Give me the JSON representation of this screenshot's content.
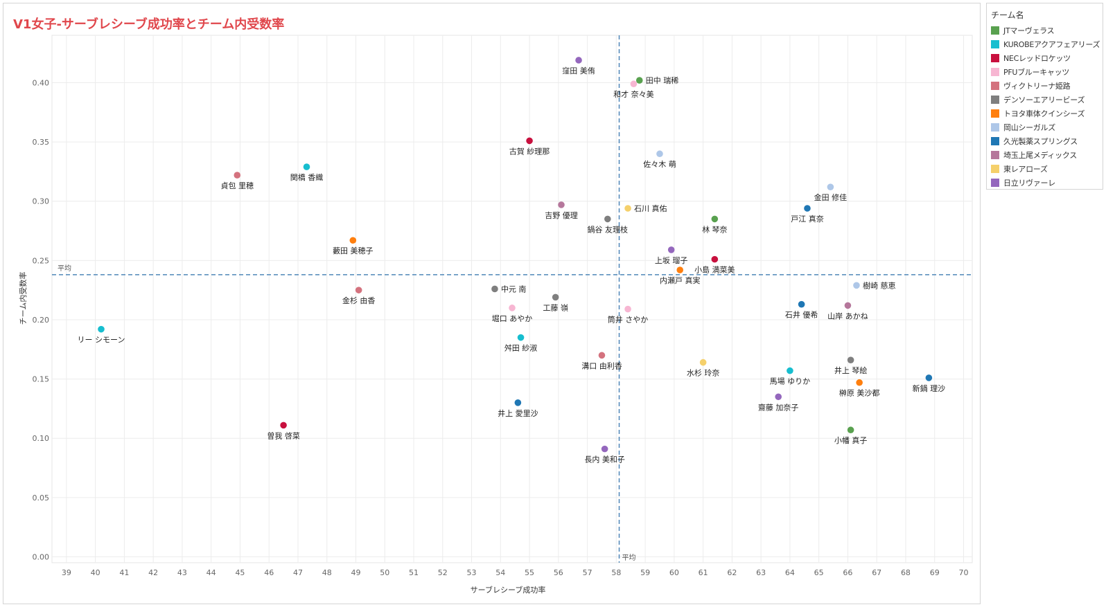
{
  "title": "V1女子-サーブレシーブ成功率とチーム内受数率",
  "legend": {
    "title": "チーム名",
    "items": [
      {
        "label": "JTマーヴェラス",
        "color": "#59a14f"
      },
      {
        "label": "KUROBEアクアフェアリーズ",
        "color": "#17becf"
      },
      {
        "label": "NECレッドロケッツ",
        "color": "#c8103e"
      },
      {
        "label": "PFUブルーキャッツ",
        "color": "#f7b6d2"
      },
      {
        "label": "ヴィクトリーナ姫路",
        "color": "#d4727e"
      },
      {
        "label": "デンソーエアリービーズ",
        "color": "#7f7f7f"
      },
      {
        "label": "トヨタ車体クインシーズ",
        "color": "#ff7f0e"
      },
      {
        "label": "岡山シーガルズ",
        "color": "#aec7e8"
      },
      {
        "label": "久光製薬スプリングス",
        "color": "#1f77b4"
      },
      {
        "label": "埼玉上尾メディックス",
        "color": "#b5779b"
      },
      {
        "label": "東レアローズ",
        "color": "#f5d06b"
      },
      {
        "label": "日立リヴァーレ",
        "color": "#9467bd"
      }
    ]
  },
  "chart_data": {
    "type": "scatter",
    "xlabel": "サーブレシーブ成功率",
    "ylabel": "チーム内受数率",
    "xlim": [
      38.5,
      70.3
    ],
    "ylim": [
      -0.005,
      0.44
    ],
    "x_ticks": [
      39,
      40,
      41,
      42,
      43,
      44,
      45,
      46,
      47,
      48,
      49,
      50,
      51,
      52,
      53,
      54,
      55,
      56,
      57,
      58,
      59,
      60,
      61,
      62,
      63,
      64,
      65,
      66,
      67,
      68,
      69,
      70
    ],
    "y_ticks": [
      0.0,
      0.05,
      0.1,
      0.15,
      0.2,
      0.25,
      0.3,
      0.35,
      0.4
    ],
    "y_tick_labels": [
      "0.00",
      "0.05",
      "0.10",
      "0.15",
      "0.20",
      "0.25",
      "0.30",
      "0.35",
      "0.40"
    ],
    "grid": true,
    "legend_position": "right",
    "reference_lines": {
      "x": {
        "value": 58.1,
        "label": "平均"
      },
      "y": {
        "value": 0.238,
        "label": "平均"
      }
    },
    "points": [
      {
        "name": "窪田 美侑",
        "team": "日立リヴァーレ",
        "x": 56.7,
        "y": 0.419,
        "lp": "below"
      },
      {
        "name": "田中 瑞稀",
        "team": "JTマーヴェラス",
        "x": 58.8,
        "y": 0.402,
        "lp": "right"
      },
      {
        "name": "和才 奈々美",
        "team": "PFUブルーキャッツ",
        "x": 58.6,
        "y": 0.399,
        "lp": "below"
      },
      {
        "name": "古賀 紗理那",
        "team": "NECレッドロケッツ",
        "x": 55.0,
        "y": 0.351,
        "lp": "below"
      },
      {
        "name": "佐々木 萌",
        "team": "岡山シーガルズ",
        "x": 59.5,
        "y": 0.34,
        "lp": "below"
      },
      {
        "name": "貞包 里穂",
        "team": "ヴィクトリーナ姫路",
        "x": 44.9,
        "y": 0.322,
        "lp": "below"
      },
      {
        "name": "関橋 香織",
        "team": "KUROBEアクアフェアリーズ",
        "x": 47.3,
        "y": 0.329,
        "lp": "below"
      },
      {
        "name": "金田 修佳",
        "team": "岡山シーガルズ",
        "x": 65.4,
        "y": 0.312,
        "lp": "below"
      },
      {
        "name": "吉野 優理",
        "team": "埼玉上尾メディックス",
        "x": 56.1,
        "y": 0.297,
        "lp": "below"
      },
      {
        "name": "石川 真佑",
        "team": "東レアローズ",
        "x": 58.4,
        "y": 0.294,
        "lp": "right"
      },
      {
        "name": "戸江 真奈",
        "team": "久光製薬スプリングス",
        "x": 64.6,
        "y": 0.294,
        "lp": "below"
      },
      {
        "name": "鍋谷 友理枝",
        "team": "デンソーエアリービーズ",
        "x": 57.7,
        "y": 0.285,
        "lp": "below"
      },
      {
        "name": "林 琴奈",
        "team": "JTマーヴェラス",
        "x": 61.4,
        "y": 0.285,
        "lp": "below"
      },
      {
        "name": "藪田 美穂子",
        "team": "トヨタ車体クインシーズ",
        "x": 48.9,
        "y": 0.267,
        "lp": "below"
      },
      {
        "name": "上坂 瑠子",
        "team": "日立リヴァーレ",
        "x": 59.9,
        "y": 0.259,
        "lp": "below"
      },
      {
        "name": "小島 満菜美",
        "team": "NECレッドロケッツ",
        "x": 61.4,
        "y": 0.251,
        "lp": "below"
      },
      {
        "name": "内瀬戸 真実",
        "team": "トヨタ車体クインシーズ",
        "x": 60.2,
        "y": 0.242,
        "lp": "below"
      },
      {
        "name": "中元 南",
        "team": "デンソーエアリービーズ",
        "x": 53.8,
        "y": 0.226,
        "lp": "right"
      },
      {
        "name": "金杉 由香",
        "team": "ヴィクトリーナ姫路",
        "x": 49.1,
        "y": 0.225,
        "lp": "below"
      },
      {
        "name": "工藤 嶺",
        "team": "デンソーエアリービーズ",
        "x": 55.9,
        "y": 0.219,
        "lp": "below"
      },
      {
        "name": "樹崎 慈恵",
        "team": "岡山シーガルズ",
        "x": 66.3,
        "y": 0.229,
        "lp": "right"
      },
      {
        "name": "石井 優希",
        "team": "久光製薬スプリングス",
        "x": 64.4,
        "y": 0.213,
        "lp": "below"
      },
      {
        "name": "山岸 あかね",
        "team": "埼玉上尾メディックス",
        "x": 66.0,
        "y": 0.212,
        "lp": "below"
      },
      {
        "name": "堀口 あやか",
        "team": "PFUブルーキャッツ",
        "x": 54.4,
        "y": 0.21,
        "lp": "below"
      },
      {
        "name": "筒井 さやか",
        "team": "PFUブルーキャッツ",
        "x": 58.4,
        "y": 0.209,
        "lp": "below"
      },
      {
        "name": "リー シモーン",
        "team": "KUROBEアクアフェアリーズ",
        "x": 40.2,
        "y": 0.192,
        "lp": "below"
      },
      {
        "name": "舛田 紗淑",
        "team": "KUROBEアクアフェアリーズ",
        "x": 54.7,
        "y": 0.185,
        "lp": "below"
      },
      {
        "name": "溝口 由利香",
        "team": "ヴィクトリーナ姫路",
        "x": 57.5,
        "y": 0.17,
        "lp": "below"
      },
      {
        "name": "井上 琴絵",
        "team": "デンソーエアリービーズ",
        "x": 66.1,
        "y": 0.166,
        "lp": "below"
      },
      {
        "name": "水杉 玲奈",
        "team": "東レアローズ",
        "x": 61.0,
        "y": 0.164,
        "lp": "below"
      },
      {
        "name": "馬場 ゆりか",
        "team": "KUROBEアクアフェアリーズ",
        "x": 64.0,
        "y": 0.157,
        "lp": "below"
      },
      {
        "name": "新鍋 理沙",
        "team": "久光製薬スプリングス",
        "x": 68.8,
        "y": 0.151,
        "lp": "below"
      },
      {
        "name": "榊原 美沙都",
        "team": "トヨタ車体クインシーズ",
        "x": 66.4,
        "y": 0.147,
        "lp": "below"
      },
      {
        "name": "齋藤 加奈子",
        "team": "日立リヴァーレ",
        "x": 63.6,
        "y": 0.135,
        "lp": "below"
      },
      {
        "name": "井上 愛里沙",
        "team": "久光製薬スプリングス",
        "x": 54.6,
        "y": 0.13,
        "lp": "below"
      },
      {
        "name": "曽我 啓菜",
        "team": "NECレッドロケッツ",
        "x": 46.5,
        "y": 0.111,
        "lp": "below"
      },
      {
        "name": "小幡 真子",
        "team": "JTマーヴェラス",
        "x": 66.1,
        "y": 0.107,
        "lp": "below"
      },
      {
        "name": "長内 美和子",
        "team": "日立リヴァーレ",
        "x": 57.6,
        "y": 0.091,
        "lp": "below"
      }
    ]
  }
}
